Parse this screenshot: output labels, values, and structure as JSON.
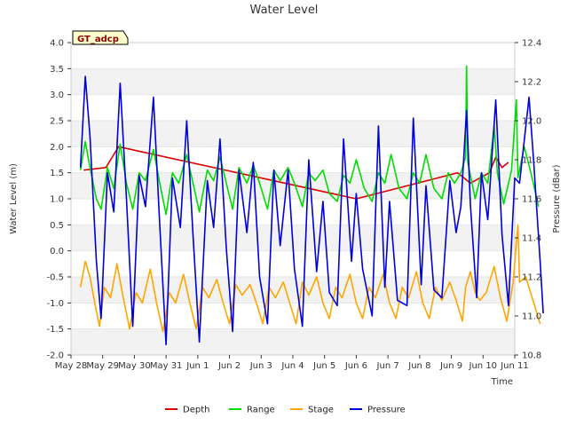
{
  "chart_data": {
    "type": "line",
    "title": "Water Level",
    "xlabel": "Time",
    "ylabel": "Water Level (m)",
    "ylabel_right": "Pressure (dBar)",
    "station_label": "GT_adcp",
    "x_ticks": [
      "May 28",
      "May 29",
      "May 30",
      "May 31",
      "Jun 1",
      "Jun 2",
      "Jun 3",
      "Jun 4",
      "Jun 5",
      "Jun 6",
      "Jun 7",
      "Jun 8",
      "Jun 9",
      "Jun 10",
      "Jun 11"
    ],
    "x_range_days": [
      0,
      14
    ],
    "y_left": {
      "min": -2.0,
      "max": 4.0,
      "ticks": [
        "-2.0",
        "-1.5",
        "-1.0",
        "-0.5",
        "0.0",
        "0.5",
        "1.0",
        "1.5",
        "2.0",
        "2.5",
        "3.0",
        "3.5",
        "4.0"
      ]
    },
    "y_right": {
      "min": 10.8,
      "max": 12.4,
      "ticks": [
        "10.8",
        "11.0",
        "11.2",
        "11.4",
        "11.6",
        "11.8",
        "12.0",
        "12.2",
        "12.4"
      ]
    },
    "grid_bands": true,
    "legend_position": "bottom-center",
    "series": [
      {
        "name": "Depth",
        "color": "#dd0000",
        "axis": "left",
        "points": [
          [
            0.4,
            1.55
          ],
          [
            1.1,
            1.6
          ],
          [
            1.5,
            2.0
          ],
          [
            9.0,
            1.0
          ],
          [
            12.2,
            1.5
          ],
          [
            12.6,
            1.3
          ],
          [
            13.2,
            1.5
          ],
          [
            13.4,
            1.8
          ],
          [
            13.6,
            1.6
          ],
          [
            13.8,
            1.7
          ]
        ]
      },
      {
        "name": "Range",
        "color": "#00dd00",
        "axis": "left",
        "points": [
          [
            0.3,
            1.55
          ],
          [
            0.45,
            2.1
          ],
          [
            0.6,
            1.6
          ],
          [
            0.8,
            1.0
          ],
          [
            0.95,
            0.8
          ],
          [
            1.15,
            1.6
          ],
          [
            1.35,
            1.2
          ],
          [
            1.55,
            2.05
          ],
          [
            1.75,
            1.3
          ],
          [
            1.95,
            0.8
          ],
          [
            2.15,
            1.5
          ],
          [
            2.35,
            1.35
          ],
          [
            2.6,
            1.95
          ],
          [
            2.8,
            1.3
          ],
          [
            3.0,
            0.7
          ],
          [
            3.2,
            1.5
          ],
          [
            3.4,
            1.3
          ],
          [
            3.65,
            1.85
          ],
          [
            3.85,
            1.3
          ],
          [
            4.05,
            0.75
          ],
          [
            4.3,
            1.55
          ],
          [
            4.5,
            1.35
          ],
          [
            4.7,
            1.8
          ],
          [
            4.9,
            1.3
          ],
          [
            5.1,
            0.8
          ],
          [
            5.3,
            1.6
          ],
          [
            5.55,
            1.3
          ],
          [
            5.75,
            1.65
          ],
          [
            5.95,
            1.3
          ],
          [
            6.2,
            0.8
          ],
          [
            6.4,
            1.55
          ],
          [
            6.6,
            1.35
          ],
          [
            6.85,
            1.6
          ],
          [
            7.05,
            1.3
          ],
          [
            7.3,
            0.85
          ],
          [
            7.5,
            1.5
          ],
          [
            7.7,
            1.35
          ],
          [
            7.95,
            1.55
          ],
          [
            8.15,
            1.1
          ],
          [
            8.4,
            0.95
          ],
          [
            8.6,
            1.45
          ],
          [
            8.8,
            1.3
          ],
          [
            9.0,
            1.75
          ],
          [
            9.25,
            1.2
          ],
          [
            9.5,
            0.95
          ],
          [
            9.7,
            1.5
          ],
          [
            9.9,
            1.3
          ],
          [
            10.1,
            1.85
          ],
          [
            10.35,
            1.2
          ],
          [
            10.6,
            1.0
          ],
          [
            10.8,
            1.5
          ],
          [
            11.0,
            1.3
          ],
          [
            11.2,
            1.85
          ],
          [
            11.45,
            1.2
          ],
          [
            11.7,
            1.0
          ],
          [
            11.9,
            1.5
          ],
          [
            12.1,
            1.3
          ],
          [
            12.3,
            1.5
          ],
          [
            12.45,
            1.8
          ],
          [
            12.48,
            3.55
          ],
          [
            12.52,
            1.7
          ],
          [
            12.75,
            1.0
          ],
          [
            12.95,
            1.5
          ],
          [
            13.15,
            1.3
          ],
          [
            13.35,
            2.4
          ],
          [
            13.45,
            1.5
          ],
          [
            13.65,
            0.9
          ],
          [
            13.9,
            1.55
          ],
          [
            14.05,
            2.9
          ],
          [
            14.1,
            1.4
          ],
          [
            14.3,
            2.0
          ],
          [
            14.55,
            1.4
          ],
          [
            14.75,
            0.85
          ]
        ]
      },
      {
        "name": "Stage",
        "color": "#ffa500",
        "axis": "left",
        "points": [
          [
            0.3,
            -0.7
          ],
          [
            0.45,
            -0.2
          ],
          [
            0.6,
            -0.5
          ],
          [
            0.75,
            -1.0
          ],
          [
            0.9,
            -1.45
          ],
          [
            1.05,
            -0.7
          ],
          [
            1.25,
            -0.9
          ],
          [
            1.45,
            -0.25
          ],
          [
            1.65,
            -0.9
          ],
          [
            1.85,
            -1.5
          ],
          [
            2.05,
            -0.8
          ],
          [
            2.25,
            -1.0
          ],
          [
            2.5,
            -0.35
          ],
          [
            2.7,
            -1.0
          ],
          [
            2.9,
            -1.55
          ],
          [
            3.1,
            -0.8
          ],
          [
            3.3,
            -1.0
          ],
          [
            3.55,
            -0.45
          ],
          [
            3.75,
            -1.0
          ],
          [
            3.95,
            -1.5
          ],
          [
            4.15,
            -0.7
          ],
          [
            4.35,
            -0.9
          ],
          [
            4.6,
            -0.55
          ],
          [
            4.8,
            -1.0
          ],
          [
            5.0,
            -1.4
          ],
          [
            5.2,
            -0.65
          ],
          [
            5.4,
            -0.85
          ],
          [
            5.65,
            -0.65
          ],
          [
            5.85,
            -1.0
          ],
          [
            6.05,
            -1.4
          ],
          [
            6.25,
            -0.7
          ],
          [
            6.45,
            -0.9
          ],
          [
            6.7,
            -0.6
          ],
          [
            6.9,
            -1.0
          ],
          [
            7.1,
            -1.4
          ],
          [
            7.3,
            -0.6
          ],
          [
            7.5,
            -0.85
          ],
          [
            7.75,
            -0.5
          ],
          [
            7.95,
            -1.0
          ],
          [
            8.15,
            -1.3
          ],
          [
            8.35,
            -0.7
          ],
          [
            8.55,
            -0.9
          ],
          [
            8.8,
            -0.45
          ],
          [
            9.0,
            -1.0
          ],
          [
            9.2,
            -1.3
          ],
          [
            9.4,
            -0.7
          ],
          [
            9.6,
            -0.9
          ],
          [
            9.85,
            -0.45
          ],
          [
            10.05,
            -1.0
          ],
          [
            10.25,
            -1.3
          ],
          [
            10.45,
            -0.7
          ],
          [
            10.65,
            -0.9
          ],
          [
            10.9,
            -0.4
          ],
          [
            11.1,
            -1.0
          ],
          [
            11.3,
            -1.3
          ],
          [
            11.5,
            -0.7
          ],
          [
            11.7,
            -0.95
          ],
          [
            11.95,
            -0.6
          ],
          [
            12.15,
            -0.95
          ],
          [
            12.35,
            -1.35
          ],
          [
            12.45,
            -0.7
          ],
          [
            12.6,
            -0.4
          ],
          [
            12.75,
            -0.8
          ],
          [
            12.9,
            -0.95
          ],
          [
            13.1,
            -0.8
          ],
          [
            13.35,
            -0.3
          ],
          [
            13.55,
            -0.9
          ],
          [
            13.75,
            -1.35
          ],
          [
            13.95,
            -0.6
          ],
          [
            14.1,
            0.5
          ],
          [
            14.15,
            -0.6
          ],
          [
            14.35,
            -0.5
          ],
          [
            14.6,
            -1.0
          ],
          [
            14.8,
            -1.4
          ]
        ]
      },
      {
        "name": "Pressure",
        "color": "#0000dd",
        "axis": "left",
        "points": [
          [
            0.3,
            1.6
          ],
          [
            0.45,
            3.35
          ],
          [
            0.6,
            2.2
          ],
          [
            0.8,
            -0.2
          ],
          [
            0.95,
            -1.3
          ],
          [
            1.15,
            1.5
          ],
          [
            1.35,
            0.75
          ],
          [
            1.55,
            3.22
          ],
          [
            1.75,
            1.0
          ],
          [
            1.95,
            -1.45
          ],
          [
            2.15,
            1.45
          ],
          [
            2.35,
            0.85
          ],
          [
            2.6,
            2.95
          ],
          [
            2.8,
            0.5
          ],
          [
            3.0,
            -1.8
          ],
          [
            3.2,
            1.4
          ],
          [
            3.45,
            0.45
          ],
          [
            3.65,
            2.5
          ],
          [
            3.85,
            0.3
          ],
          [
            4.05,
            -1.75
          ],
          [
            4.3,
            1.35
          ],
          [
            4.5,
            0.45
          ],
          [
            4.7,
            2.15
          ],
          [
            4.9,
            0.05
          ],
          [
            5.1,
            -1.55
          ],
          [
            5.3,
            1.55
          ],
          [
            5.55,
            0.35
          ],
          [
            5.75,
            1.7
          ],
          [
            5.95,
            -0.5
          ],
          [
            6.2,
            -1.4
          ],
          [
            6.4,
            1.55
          ],
          [
            6.6,
            0.1
          ],
          [
            6.85,
            1.55
          ],
          [
            7.05,
            -0.35
          ],
          [
            7.3,
            -1.45
          ],
          [
            7.5,
            1.75
          ],
          [
            7.75,
            -0.4
          ],
          [
            7.95,
            0.95
          ],
          [
            8.15,
            -0.8
          ],
          [
            8.4,
            -1.05
          ],
          [
            8.6,
            2.15
          ],
          [
            8.85,
            -0.2
          ],
          [
            9.0,
            1.1
          ],
          [
            9.2,
            -0.35
          ],
          [
            9.5,
            -1.25
          ],
          [
            9.7,
            2.4
          ],
          [
            9.9,
            -0.7
          ],
          [
            10.05,
            0.95
          ],
          [
            10.3,
            -0.95
          ],
          [
            10.6,
            -1.05
          ],
          [
            10.8,
            2.55
          ],
          [
            11.05,
            -0.65
          ],
          [
            11.2,
            1.25
          ],
          [
            11.45,
            -0.75
          ],
          [
            11.7,
            -0.9
          ],
          [
            11.95,
            1.35
          ],
          [
            12.15,
            0.35
          ],
          [
            12.3,
            0.85
          ],
          [
            12.48,
            2.7
          ],
          [
            12.6,
            0.9
          ],
          [
            12.8,
            -0.9
          ],
          [
            12.95,
            1.5
          ],
          [
            13.15,
            0.6
          ],
          [
            13.4,
            2.9
          ],
          [
            13.6,
            0.3
          ],
          [
            13.8,
            -1.05
          ],
          [
            14.0,
            1.4
          ],
          [
            14.15,
            1.3
          ],
          [
            14.45,
            2.95
          ],
          [
            14.6,
            1.7
          ],
          [
            14.8,
            -0.2
          ],
          [
            14.9,
            -1.2
          ]
        ]
      }
    ]
  }
}
